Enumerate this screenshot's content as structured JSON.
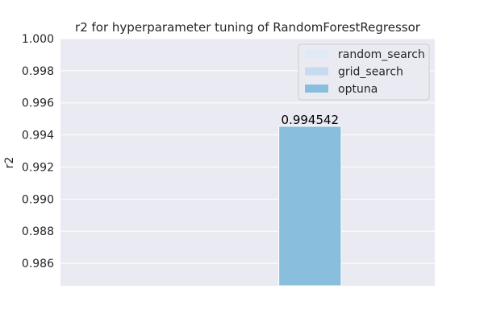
{
  "chart_data": {
    "type": "bar",
    "title": "r2 for hyperparameter tuning of RandomForestRegressor",
    "xlabel": "",
    "ylabel": "r2",
    "ylim": [
      0.9846,
      1.0
    ],
    "y_ticks": [
      "1.000",
      "0.998",
      "0.996",
      "0.994",
      "0.992",
      "0.990",
      "0.988",
      "0.986"
    ],
    "grid": true,
    "legend_position": "top-right",
    "series": [
      {
        "name": "random_search",
        "color": "#deebf7",
        "value": null
      },
      {
        "name": "grid_search",
        "color": "#c6dbef",
        "value": null
      },
      {
        "name": "optuna",
        "color": "#89bedc",
        "value": 0.994542,
        "label": "0.994542"
      }
    ]
  }
}
